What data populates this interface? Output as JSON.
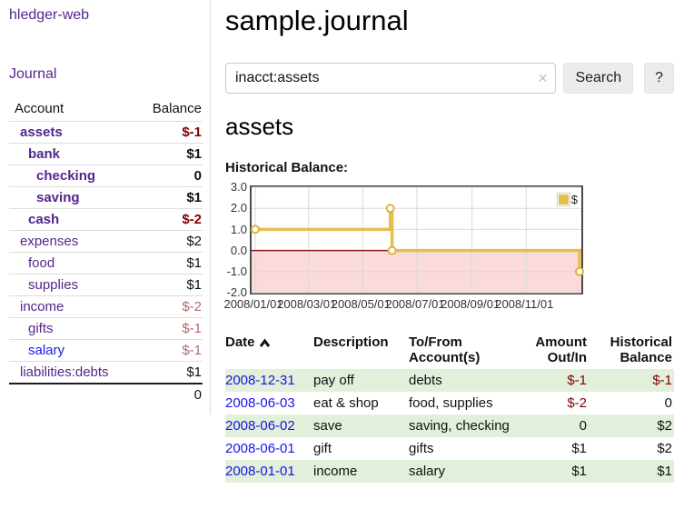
{
  "palette": {
    "link_purple": "#55258e",
    "link_blue": "#1a1ae6",
    "date_blue": "#1414e8",
    "text": "#111111",
    "neg_dark": "#800000",
    "neg_muted": "#b5696c",
    "row_green": "#e2efda"
  },
  "app": {
    "title": "hledger-web"
  },
  "sidebar": {
    "journal_label": "Journal",
    "accounts": {
      "account_header": "Account",
      "balance_header": "Balance",
      "rows": [
        {
          "label": "assets",
          "balance": "$-1",
          "level": 1,
          "bold": true,
          "balance_color": "neg_dark"
        },
        {
          "label": "bank",
          "balance": "$1",
          "level": 2,
          "bold": true
        },
        {
          "label": "checking",
          "balance": "0",
          "level": 3,
          "bold": true
        },
        {
          "label": "saving",
          "balance": "$1",
          "level": 3,
          "bold": true
        },
        {
          "label": "cash",
          "balance": "$-2",
          "level": 2,
          "bold": true,
          "balance_color": "neg_dark"
        },
        {
          "label": "expenses",
          "balance": "$2",
          "level": 1
        },
        {
          "label": "food",
          "balance": "$1",
          "level": 2
        },
        {
          "label": "supplies",
          "balance": "$1",
          "level": 2
        },
        {
          "label": "income",
          "balance": "$-2",
          "level": 1,
          "balance_color": "neg_muted"
        },
        {
          "label": "gifts",
          "balance": "$-1",
          "level": 2,
          "balance_color": "neg_muted"
        },
        {
          "label": "salary",
          "balance": "$-1",
          "level": 2,
          "balance_color": "neg_muted",
          "link_color": "blue"
        },
        {
          "label": "liabilities:debts",
          "balance": "$1",
          "level": 1
        }
      ],
      "total": "0"
    }
  },
  "header": {
    "title": "sample.journal"
  },
  "search": {
    "value": "inacct:assets",
    "clear_icon": "✕",
    "button_label": "Search",
    "help_label": "?"
  },
  "account_page": {
    "title": "assets",
    "section_label": "Historical Balance:"
  },
  "chart_data": {
    "type": "line",
    "step": true,
    "title": "Historical Balance",
    "x_range": [
      "2008-01-01",
      "2008-12-31"
    ],
    "ylim": [
      -2,
      3
    ],
    "y_ticks": [
      3.0,
      2.0,
      1.0,
      0.0,
      -1.0,
      -2.0
    ],
    "x_ticks": [
      "2008/01/01",
      "2008/03/01",
      "2008/05/01",
      "2008/07/01",
      "2008/09/01",
      "2008/11/01"
    ],
    "series": [
      {
        "name": "$",
        "points": [
          [
            "2008-01-01",
            1
          ],
          [
            "2008-06-01",
            2
          ],
          [
            "2008-06-03",
            0
          ],
          [
            "2008-12-31",
            -1
          ]
        ]
      }
    ],
    "legend": {
      "label": "$",
      "position": "top-right"
    },
    "grid": true,
    "line_color": "#e5bf4d",
    "marker_stroke": "#ddb23e",
    "grid_color": "#d9d9d9",
    "border_color": "#4a4a4a",
    "negative_fill": "#fbdada",
    "zero_line_color": "#8b1a1a"
  },
  "register": {
    "headers": {
      "date": "Date",
      "description": "Description",
      "accounts": "To/From Account(s)",
      "amount": "Amount Out/In",
      "balance": "Historical Balance"
    },
    "sort": {
      "column": "date",
      "direction": "ascending"
    },
    "rows": [
      {
        "date": "2008-12-31",
        "description": "pay off",
        "accounts": "debts",
        "amount": "$-1",
        "balance": "$-1",
        "amount_negative": true,
        "balance_negative": true,
        "highlight": true
      },
      {
        "date": "2008-06-03",
        "description": "eat & shop",
        "accounts": "food, supplies",
        "amount": "$-2",
        "balance": "0",
        "amount_negative": true,
        "balance_negative": false,
        "highlight": false
      },
      {
        "date": "2008-06-02",
        "description": "save",
        "accounts": "saving, checking",
        "amount": "0",
        "balance": "$2",
        "amount_negative": false,
        "balance_negative": false,
        "highlight": true
      },
      {
        "date": "2008-06-01",
        "description": "gift",
        "accounts": "gifts",
        "amount": "$1",
        "balance": "$2",
        "amount_negative": false,
        "balance_negative": false,
        "highlight": false
      },
      {
        "date": "2008-01-01",
        "description": "income",
        "accounts": "salary",
        "amount": "$1",
        "balance": "$1",
        "amount_negative": false,
        "balance_negative": false,
        "highlight": true
      }
    ]
  }
}
